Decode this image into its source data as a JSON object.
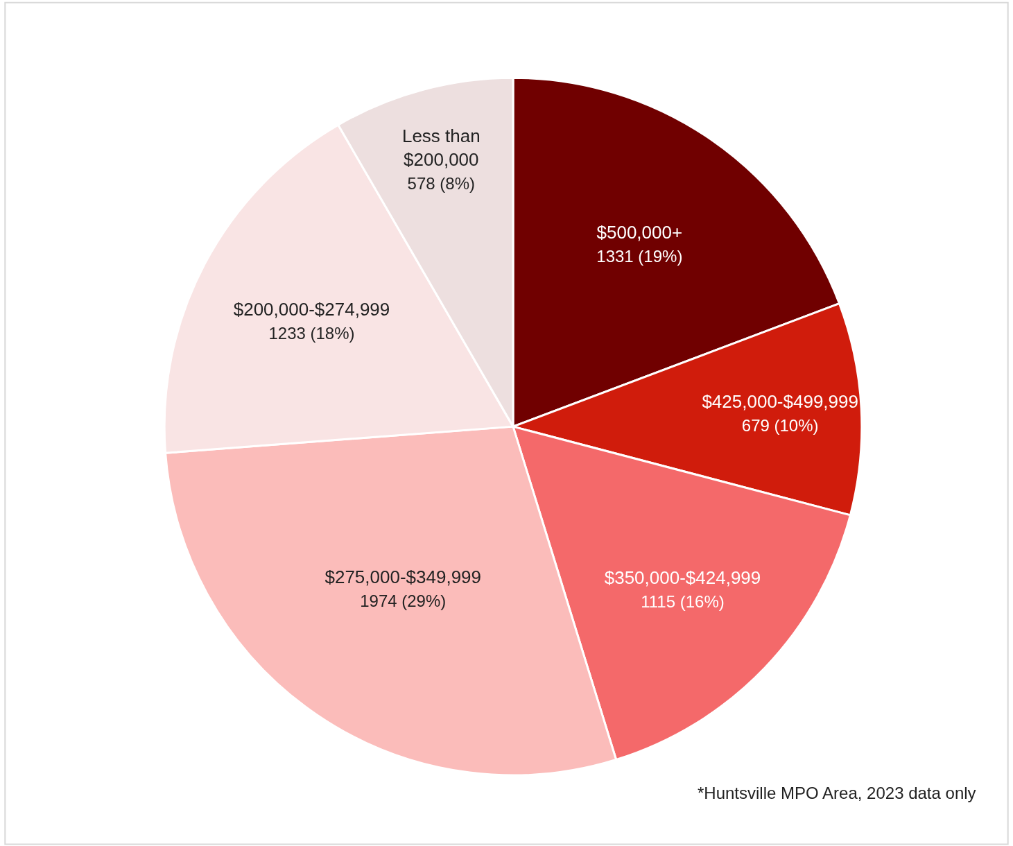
{
  "chart_data": {
    "type": "pie",
    "categories": [
      "$500,000+",
      "$425,000-$499,999",
      "$350,000-$424,999",
      "$275,000-$349,999",
      "$200,000-$274,999",
      "Less than $200,000"
    ],
    "values": [
      1331,
      679,
      1115,
      1974,
      1233,
      578
    ],
    "value_labels": [
      "1331 (19%)",
      "679 (10%)",
      "1115 (16%)",
      "1974 (29%)",
      "1233 (18%)",
      "578 (8%)"
    ],
    "colors": [
      "#700000",
      "#d01c0c",
      "#f4696a",
      "#fbbcba",
      "#f9e4e4",
      "#eddfdf"
    ],
    "annotations": [
      "*Huntsville MPO Area, 2023 data only"
    ],
    "legend": false
  }
}
